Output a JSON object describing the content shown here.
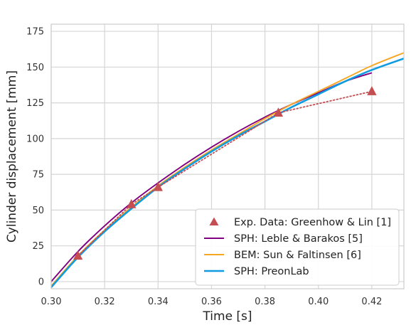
{
  "chart_data": {
    "type": "line",
    "title": "",
    "xlabel": "Time [s]",
    "ylabel": "Cylinder displacement [mm]",
    "xlim": [
      0.3,
      0.432
    ],
    "ylim": [
      -5,
      180
    ],
    "xticks": [
      0.3,
      0.32,
      0.34,
      0.36,
      0.38,
      0.4,
      0.42
    ],
    "xtick_labels": [
      "0.30",
      "0.32",
      "0.34",
      "0.36",
      "0.38",
      "0.40",
      "0.42"
    ],
    "yticks": [
      0,
      25,
      50,
      75,
      100,
      125,
      150,
      175
    ],
    "ytick_labels": [
      "0",
      "25",
      "50",
      "75",
      "100",
      "125",
      "150",
      "175"
    ],
    "grid": true,
    "legend_position": "bottom-right",
    "series": [
      {
        "name": "Exp. Data: Greenhow & Lin [1]",
        "kind": "markers-dotted",
        "color": "#c44e52",
        "x": [
          0.31,
          0.33,
          0.34,
          0.385,
          0.42
        ],
        "y": [
          18,
          54,
          66,
          118,
          133
        ]
      },
      {
        "name": "SPH: Leble & Barakos [5]",
        "kind": "line",
        "color": "#800080",
        "x": [
          0.3,
          0.31,
          0.32,
          0.33,
          0.34,
          0.35,
          0.36,
          0.37,
          0.38,
          0.39,
          0.4,
          0.41,
          0.42
        ],
        "y": [
          0,
          21,
          39,
          55,
          69,
          82,
          94,
          105,
          115,
          124,
          132,
          140,
          146
        ]
      },
      {
        "name": "BEM: Sun & Faltinsen [6]",
        "kind": "line",
        "color": "#f5a623",
        "x": [
          0.3,
          0.31,
          0.32,
          0.33,
          0.34,
          0.35,
          0.36,
          0.37,
          0.38,
          0.39,
          0.4,
          0.41,
          0.42,
          0.432
        ],
        "y": [
          -3,
          18,
          36,
          52,
          67,
          80,
          92,
          103,
          114,
          124,
          133,
          142,
          151,
          160
        ]
      },
      {
        "name": "SPH: PreonLab",
        "kind": "line",
        "color": "#0f9be0",
        "x": [
          0.3,
          0.31,
          0.32,
          0.33,
          0.34,
          0.35,
          0.36,
          0.37,
          0.38,
          0.39,
          0.4,
          0.41,
          0.42,
          0.432
        ],
        "y": [
          -4,
          17,
          35,
          51,
          66,
          79,
          91,
          102,
          112,
          122,
          131,
          140,
          148,
          156
        ]
      }
    ]
  }
}
